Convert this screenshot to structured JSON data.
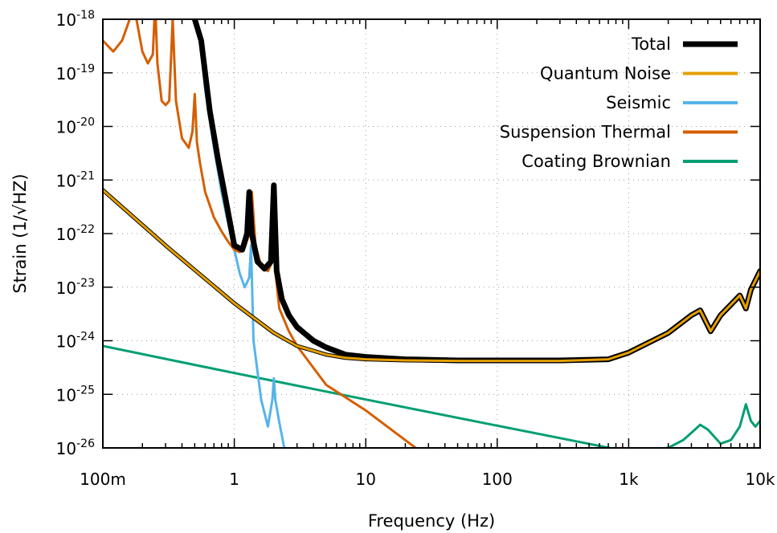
{
  "chart_data": {
    "type": "line",
    "title": "",
    "xlabel": "Frequency (Hz)",
    "ylabel": "Strain (1/√HZ)",
    "xscale": "log",
    "yscale": "log",
    "xlim": [
      0.1,
      10000
    ],
    "ylim": [
      1e-26,
      1e-18
    ],
    "grid": true,
    "legend_position": "top-right",
    "x_ticks": [
      {
        "value": 0.1,
        "label": "100m"
      },
      {
        "value": 1,
        "label": "1"
      },
      {
        "value": 10,
        "label": "10"
      },
      {
        "value": 100,
        "label": "100"
      },
      {
        "value": 1000,
        "label": "1k"
      },
      {
        "value": 10000,
        "label": "10k"
      }
    ],
    "y_ticks": [
      {
        "value": 1e-18,
        "mant": "10",
        "exp": "-18"
      },
      {
        "value": 1e-19,
        "mant": "10",
        "exp": "-19"
      },
      {
        "value": 1e-20,
        "mant": "10",
        "exp": "-20"
      },
      {
        "value": 1e-21,
        "mant": "10",
        "exp": "-21"
      },
      {
        "value": 1e-22,
        "mant": "10",
        "exp": "-22"
      },
      {
        "value": 1e-23,
        "mant": "10",
        "exp": "-23"
      },
      {
        "value": 1e-24,
        "mant": "10",
        "exp": "-24"
      },
      {
        "value": 1e-25,
        "mant": "10",
        "exp": "-25"
      },
      {
        "value": 1e-26,
        "mant": "10",
        "exp": "-26"
      }
    ],
    "series": [
      {
        "name": "Total",
        "color": "#000000",
        "x": [
          0.5,
          0.56,
          0.65,
          0.75,
          0.85,
          1.0,
          1.15,
          1.25,
          1.3,
          1.36,
          1.5,
          1.7,
          1.9,
          2.0,
          2.1,
          2.3,
          2.6,
          3.0,
          4.0,
          5.0,
          7.0,
          10,
          20,
          50,
          100,
          300,
          700,
          1000,
          2000,
          3000,
          3500,
          4200,
          5000,
          7000,
          7800,
          8500,
          10000
        ],
        "y": [
          1e-18,
          4e-19,
          2e-20,
          2.5e-21,
          5e-22,
          6e-23,
          5e-23,
          1e-22,
          6e-22,
          1e-22,
          3e-23,
          2.2e-23,
          3e-23,
          8e-22,
          2e-23,
          6e-24,
          3e-24,
          1.8e-24,
          1e-24,
          7.5e-25,
          5.5e-25,
          5e-25,
          4.5e-25,
          4.3e-25,
          4.3e-25,
          4.3e-25,
          4.5e-25,
          6e-25,
          1.4e-24,
          3e-24,
          3.7e-24,
          1.5e-24,
          3e-24,
          7e-24,
          4e-24,
          9e-24,
          2e-23
        ]
      },
      {
        "name": "Quantum Noise",
        "color": "#e69f00",
        "x": [
          0.1,
          0.3,
          1,
          2,
          3,
          4,
          5,
          7,
          10,
          20,
          50,
          100,
          300,
          700,
          1000,
          2000,
          3000,
          3500,
          4200,
          5000,
          7000,
          7800,
          8500,
          10000
        ],
        "y": [
          6.5e-22,
          6e-23,
          5e-24,
          1.4e-24,
          8e-25,
          6.5e-25,
          5.5e-25,
          4.8e-25,
          4.5e-25,
          4.3e-25,
          4.2e-25,
          4.2e-25,
          4.2e-25,
          4.5e-25,
          6e-25,
          1.4e-24,
          3e-24,
          3.7e-24,
          1.5e-24,
          3e-24,
          7e-24,
          4e-24,
          9e-24,
          2e-23
        ]
      },
      {
        "name": "Seismic",
        "color": "#56b4e9",
        "x": [
          0.5,
          0.55,
          0.6,
          0.7,
          0.8,
          0.9,
          1.0,
          1.1,
          1.2,
          1.3,
          1.34,
          1.4,
          1.6,
          1.8,
          1.95,
          2.0,
          2.05,
          2.2,
          2.4
        ],
        "y": [
          1e-18,
          4e-19,
          5e-20,
          4e-21,
          6e-22,
          1.5e-22,
          5e-23,
          1.8e-23,
          1e-23,
          1.5e-23,
          6e-23,
          1e-24,
          8e-26,
          2.5e-26,
          8e-26,
          2e-25,
          8e-26,
          3e-26,
          1e-26
        ]
      },
      {
        "name": "Suspension Thermal",
        "color": "#d55e00",
        "x": [
          0.1,
          0.12,
          0.14,
          0.16,
          0.17,
          0.18,
          0.2,
          0.22,
          0.24,
          0.25,
          0.26,
          0.28,
          0.3,
          0.32,
          0.34,
          0.36,
          0.4,
          0.45,
          0.48,
          0.5,
          0.52,
          0.55,
          0.6,
          0.7,
          0.8,
          0.9,
          1.0,
          1.1,
          1.2,
          1.3,
          1.36,
          1.45,
          1.6,
          1.8,
          1.95,
          2.0,
          2.05,
          2.2,
          2.6,
          3.0,
          5.0,
          10,
          24
        ],
        "y": [
          4e-19,
          2.5e-19,
          4e-19,
          1e-18,
          3e-17,
          1e-18,
          2.5e-19,
          1.5e-19,
          2.2e-19,
          2e-18,
          1.5e-19,
          3e-20,
          2.5e-20,
          3e-20,
          1e-18,
          3e-20,
          6e-21,
          4e-21,
          8e-21,
          4e-20,
          5e-21,
          2e-21,
          6e-22,
          2e-22,
          1.1e-22,
          7e-23,
          5e-23,
          4.5e-23,
          5.5e-23,
          1e-22,
          6e-22,
          6e-23,
          2.5e-23,
          2e-23,
          3e-23,
          8e-22,
          2e-23,
          4e-24,
          1.5e-24,
          8e-25,
          1.5e-25,
          5e-26,
          1e-26
        ]
      },
      {
        "name": "Coating Brownian",
        "color": "#009e73",
        "x": [
          0.1,
          1,
          10,
          100,
          1000,
          2000,
          2600,
          3200,
          3500,
          4000,
          5000,
          6000,
          7000,
          7800,
          8500,
          9200,
          10000
        ],
        "y": [
          8e-25,
          2.5e-25,
          8e-26,
          2.6e-26,
          8.5e-27,
          1e-26,
          1.4e-26,
          2.2e-26,
          2.7e-26,
          2.2e-26,
          1.2e-26,
          1.4e-26,
          2.5e-26,
          6.5e-26,
          3.2e-26,
          2.5e-26,
          3.2e-26
        ]
      }
    ]
  }
}
